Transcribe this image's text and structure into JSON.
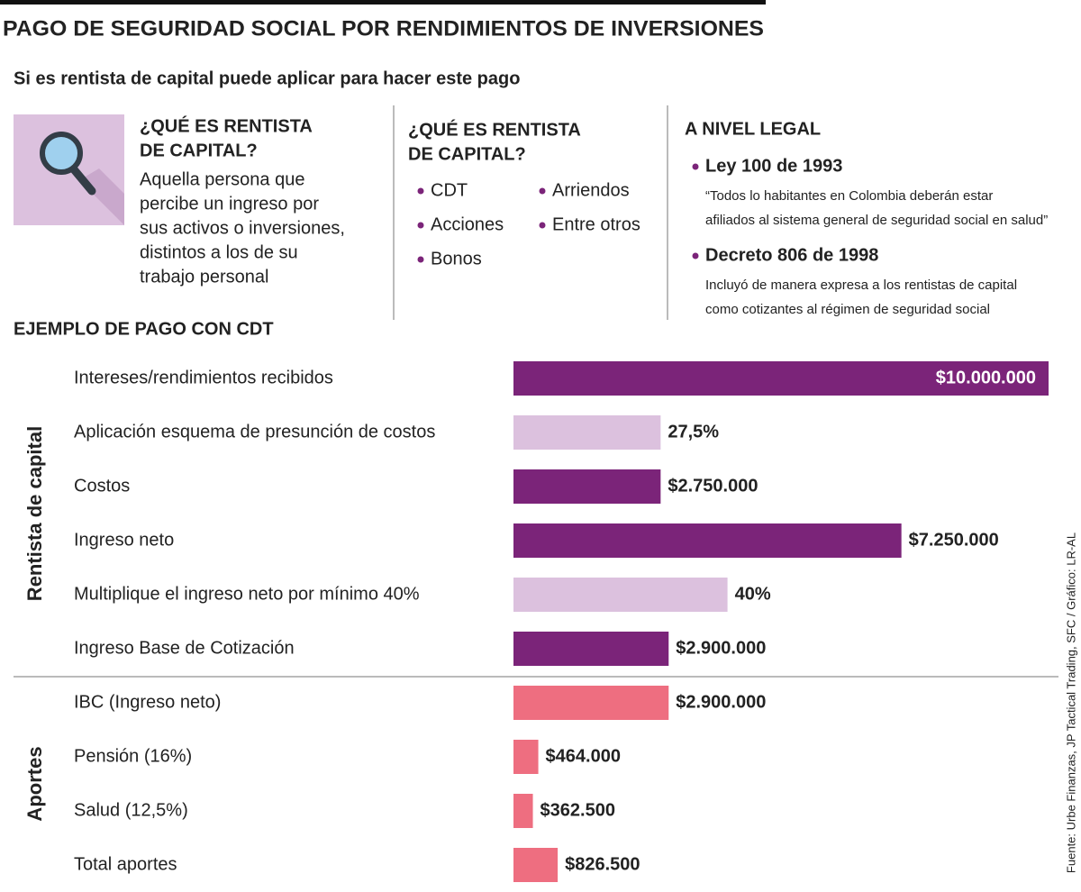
{
  "title": "PAGO DE SEGURIDAD SOCIAL POR RENDIMIENTOS DE INVERSIONES",
  "subtitle": "Si es rentista de capital puede aplicar para hacer este pago",
  "definition": {
    "heading": [
      "¿QUÉ ES RENTISTA",
      "DE CAPITAL?"
    ],
    "body": [
      "Aquella persona que",
      "percibe un ingreso por",
      "sus activos o inversiones,",
      "distintos a los de su",
      "trabajo personal"
    ]
  },
  "examples": {
    "heading": [
      "¿QUÉ ES RENTISTA",
      "DE CAPITAL?"
    ],
    "items": [
      "CDT",
      "Arriendos",
      "Acciones",
      "Entre otros",
      "Bonos"
    ]
  },
  "legal": {
    "heading": "A NIVEL LEGAL",
    "items": [
      {
        "name": "Ley 100 de 1993",
        "text": [
          "“Todos lo habitantes en Colombia deberán estar",
          "afiliados al sistema general de seguridad social en salud”"
        ]
      },
      {
        "name": "Decreto 806 de 1998",
        "text": [
          "Incluyó de manera expresa a los rentistas de capital",
          "como cotizantes al régimen de seguridad social"
        ]
      }
    ]
  },
  "source": "Fuente: Urbe Finanzas, JP Tactical Trading, SFC / Gráfico: LR-AL",
  "chart_data": {
    "type": "bar",
    "orientation": "horizontal",
    "title": "EJEMPLO DE PAGO CON CDT",
    "groups": [
      "Rentista de capital",
      "Aportes"
    ],
    "categories": [
      "Intereses/rendimientos recibidos",
      "Aplicación esquema de presunción de costos",
      "Costos",
      "Ingreso neto",
      "Multiplique el ingreso neto por mínimo 40%",
      "Ingreso Base de Cotización",
      "IBC (Ingreso neto)",
      "Pensión (16%)",
      "Salud (12,5%)",
      "Total aportes"
    ],
    "values": [
      10000000,
      27.5,
      2750000,
      7250000,
      40,
      2900000,
      2900000,
      464000,
      362500,
      826500
    ],
    "value_labels": [
      "$10.000.000",
      "27,5%",
      "$2.750.000",
      "$7.250.000",
      "40%",
      "$2.900.000",
      "$2.900.000",
      "$464.000",
      "$362.500",
      "$826.500"
    ],
    "colors": [
      "#7b2479",
      "#dcc1de",
      "#7b2479",
      "#7b2479",
      "#dcc1de",
      "#7b2479",
      "#ee6e80",
      "#ee6e80",
      "#ee6e80",
      "#ee6e80"
    ]
  }
}
